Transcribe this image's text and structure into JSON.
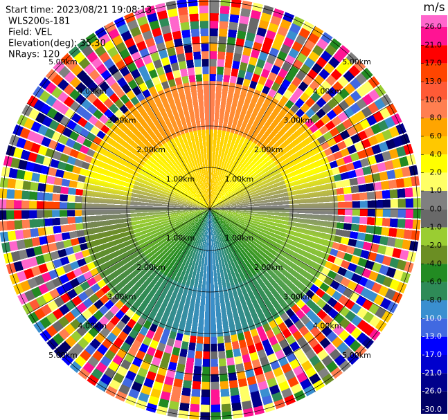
{
  "chart_data": {
    "type": "ppi",
    "info": [
      "Start time: 2023/08/21 19:08:13",
      "WLS200s-181",
      "Field: VEL",
      "Elevation(deg): 35.30",
      "NRays: 120"
    ],
    "range_labels": [
      "1.00km",
      "2.00km",
      "3.00km",
      "4.00km",
      "5.00km"
    ],
    "colorbar": {
      "title": "m/s",
      "ticks": [
        {
          "value": 26,
          "label": "26.0"
        },
        {
          "value": 21,
          "label": "21.0"
        },
        {
          "value": 17,
          "label": "17.0"
        },
        {
          "value": 13,
          "label": "13.0"
        },
        {
          "value": 10,
          "label": "10.0"
        },
        {
          "value": 8,
          "label": "8.0"
        },
        {
          "value": 6,
          "label": "6.0"
        },
        {
          "value": 4,
          "label": "4.0"
        },
        {
          "value": 2,
          "label": "2.0"
        },
        {
          "value": 1,
          "label": "1.0"
        },
        {
          "value": 0,
          "label": "0.0"
        },
        {
          "value": -1,
          "label": "-1.0"
        },
        {
          "value": -2,
          "label": "-2.0"
        },
        {
          "value": -4,
          "label": "-4.0"
        },
        {
          "value": -6,
          "label": "-6.0"
        },
        {
          "value": -8,
          "label": "-8.0"
        },
        {
          "value": -10,
          "label": "-10.0"
        },
        {
          "value": -13,
          "label": "-13.0"
        },
        {
          "value": -17,
          "label": "-17.0"
        },
        {
          "value": -21,
          "label": "-21.0"
        },
        {
          "value": -26,
          "label": "-26.0"
        },
        {
          "value": -30,
          "label": "-30.0"
        }
      ],
      "colors": [
        "#ff66cc",
        "#ff1493",
        "#ff0000",
        "#ff4500",
        "#ff5a36",
        "#ff7f50",
        "#ffa500",
        "#ffc800",
        "#ffff00",
        "#ffff66",
        "#808080",
        "#696969",
        "#9acd32",
        "#6b8e23",
        "#228b22",
        "#2e8b57",
        "#3a8fd0",
        "#4169e1",
        "#0000ff",
        "#0000cd",
        "#00008b",
        "#000066"
      ]
    }
  }
}
